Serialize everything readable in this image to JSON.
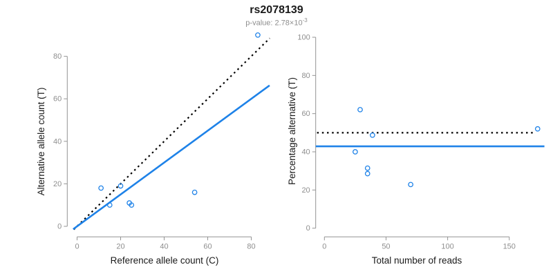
{
  "header": {
    "title": "rs2078139",
    "subtitle_prefix": "p-value: 2.78×10",
    "subtitle_exponent": "-3"
  },
  "colors": {
    "accent_blue": "#1e82e8",
    "line_black": "#000000",
    "axis_gray": "#939393",
    "tick_label_gray": "#8e8e8e",
    "text_black": "#1a1a1a",
    "subtitle_gray": "#8e8e8e"
  },
  "chart_data": [
    {
      "type": "scatter",
      "panel": "left",
      "xlabel": "Reference allele count (C)",
      "ylabel": "Alternative allele count (T)",
      "xticks": [
        0,
        20,
        40,
        60,
        80
      ],
      "yticks": [
        0,
        20,
        40,
        60,
        80
      ],
      "xlim": [
        -3.5,
        88.5
      ],
      "ylim": [
        -3.7,
        93.7
      ],
      "grid": false,
      "points": [
        {
          "x": 11,
          "y": 18
        },
        {
          "x": 20,
          "y": 19
        },
        {
          "x": 15,
          "y": 10
        },
        {
          "x": 24,
          "y": 11
        },
        {
          "x": 25,
          "y": 10
        },
        {
          "x": 54,
          "y": 16
        },
        {
          "x": 83,
          "y": 90
        }
      ],
      "lines": [
        {
          "name": "identity-line",
          "style": "dotted",
          "color": "black",
          "slope": 1,
          "intercept": 0,
          "x_start": -1.5,
          "x_end": 88.5
        },
        {
          "name": "fit-line",
          "style": "solid",
          "color": "blue",
          "slope": 0.75,
          "intercept": 0,
          "x_start": -1.8,
          "x_end": 88.4
        }
      ]
    },
    {
      "type": "scatter",
      "panel": "right",
      "xlabel": "Total number of reads",
      "ylabel": "Percentage alternative (T)",
      "xticks": [
        0,
        50,
        100,
        150
      ],
      "yticks": [
        0,
        20,
        40,
        60,
        80,
        100
      ],
      "xlim": [
        -7,
        180
      ],
      "ylim": [
        0,
        100
      ],
      "grid": false,
      "points": [
        {
          "x": 29,
          "y": 62.07
        },
        {
          "x": 39,
          "y": 48.72
        },
        {
          "x": 25,
          "y": 40.0
        },
        {
          "x": 35,
          "y": 31.43
        },
        {
          "x": 35,
          "y": 28.57
        },
        {
          "x": 70,
          "y": 22.86
        },
        {
          "x": 173,
          "y": 52.02
        }
      ],
      "lines": [
        {
          "name": "expected-50-line",
          "style": "dotted",
          "color": "black",
          "y": 50,
          "x_start": -6,
          "x_end": 171
        },
        {
          "name": "mean-percentage-line",
          "style": "solid",
          "color": "blue",
          "y": 42.86,
          "x_start": -7,
          "x_end": 178.5
        }
      ]
    }
  ]
}
